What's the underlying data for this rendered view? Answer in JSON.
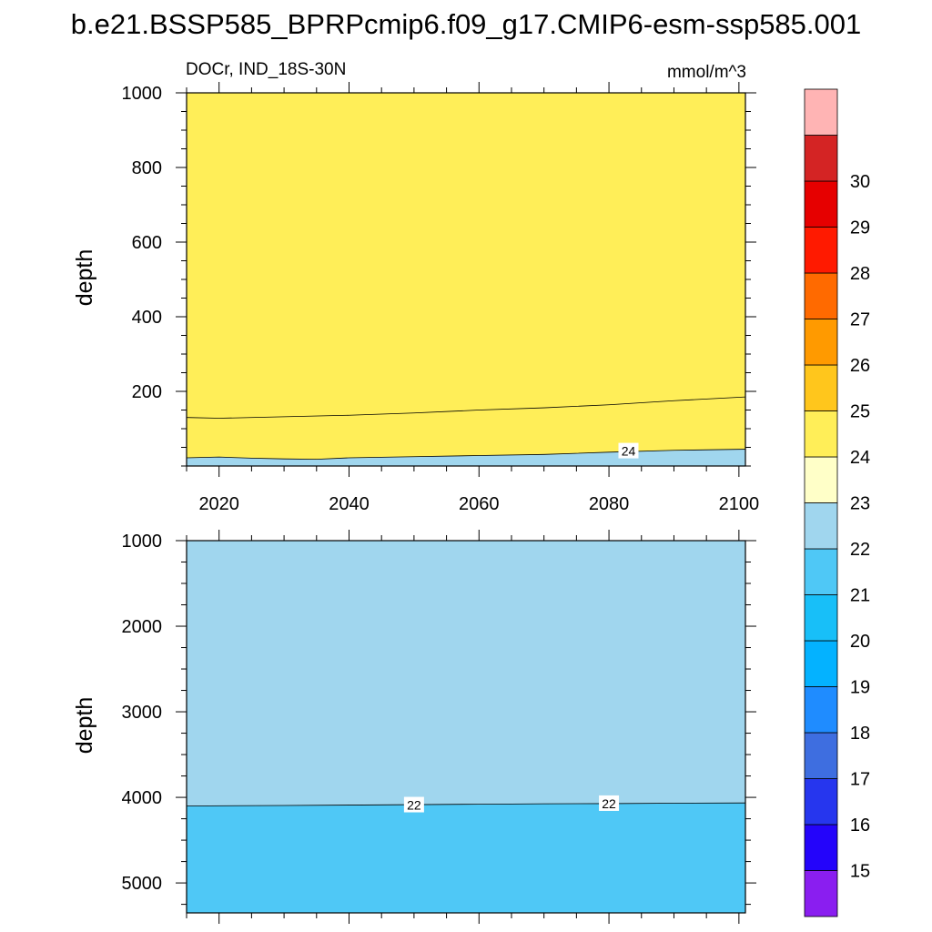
{
  "figure": {
    "title": "b.e21.BSSP585_BPRPcmip6.f09_g17.CMIP6-esm-ssp585.001",
    "variable_label": "DOCr, IND_18S-30N",
    "units": "mmol/m^3"
  },
  "chart_data": [
    {
      "type": "heatmap",
      "panel": "upper",
      "xlim": [
        2015,
        2101
      ],
      "ylim": [
        1000,
        0
      ],
      "ylabel": "depth",
      "xlabel": "",
      "x_ticks": [
        2020,
        2040,
        2060,
        2080,
        2100
      ],
      "y_ticks": [
        200,
        400,
        600,
        800,
        1000
      ],
      "contours": [
        {
          "level": 24,
          "x": [
            2015,
            2020,
            2025,
            2030,
            2035,
            2040,
            2050,
            2060,
            2070,
            2080,
            2090,
            2101
          ],
          "depth": [
            22,
            24,
            21,
            19,
            18,
            22,
            25,
            28,
            31,
            37,
            42,
            45
          ]
        },
        {
          "level": 23,
          "x": [
            2015,
            2020,
            2030,
            2040,
            2050,
            2060,
            2070,
            2080,
            2090,
            2101
          ],
          "depth": [
            130,
            128,
            132,
            136,
            142,
            150,
            156,
            164,
            175,
            185
          ]
        }
      ],
      "contour_labels": [
        {
          "text": "24",
          "x": 2083,
          "depth": 40
        }
      ]
    },
    {
      "type": "heatmap",
      "panel": "lower",
      "xlim": [
        2015,
        2101
      ],
      "ylim": [
        1000,
        5350
      ],
      "ylabel": "depth",
      "xlabel": "",
      "x_ticks": [
        2020,
        2040,
        2060,
        2080,
        2100
      ],
      "y_ticks": [
        1000,
        2000,
        3000,
        4000,
        5000
      ],
      "contours": [
        {
          "level": 22,
          "x": [
            2015,
            2030,
            2050,
            2060,
            2070,
            2080,
            2090,
            2101
          ],
          "depth": [
            4100,
            4095,
            4085,
            4080,
            4075,
            4073,
            4068,
            4065
          ]
        }
      ],
      "contour_labels": [
        {
          "text": "22",
          "x": 2050,
          "depth": 4090
        },
        {
          "text": "22",
          "x": 2080,
          "depth": 4073
        }
      ]
    }
  ],
  "colorbar": {
    "labels": [
      "15",
      "16",
      "17",
      "18",
      "19",
      "20",
      "21",
      "22",
      "23",
      "24",
      "25",
      "26",
      "27",
      "28",
      "29",
      "30"
    ],
    "colors": [
      "#8a1ef0",
      "#2404fa",
      "#2636ee",
      "#3e6ee0",
      "#1f8cff",
      "#04b2ff",
      "#18bff8",
      "#4fc8f6",
      "#a0d6ee",
      "#ffffc8",
      "#ffee58",
      "#ffc61c",
      "#ff9a00",
      "#ff6a00",
      "#ff1a00",
      "#e60000",
      "#d42424",
      "#ffb4b4"
    ]
  }
}
